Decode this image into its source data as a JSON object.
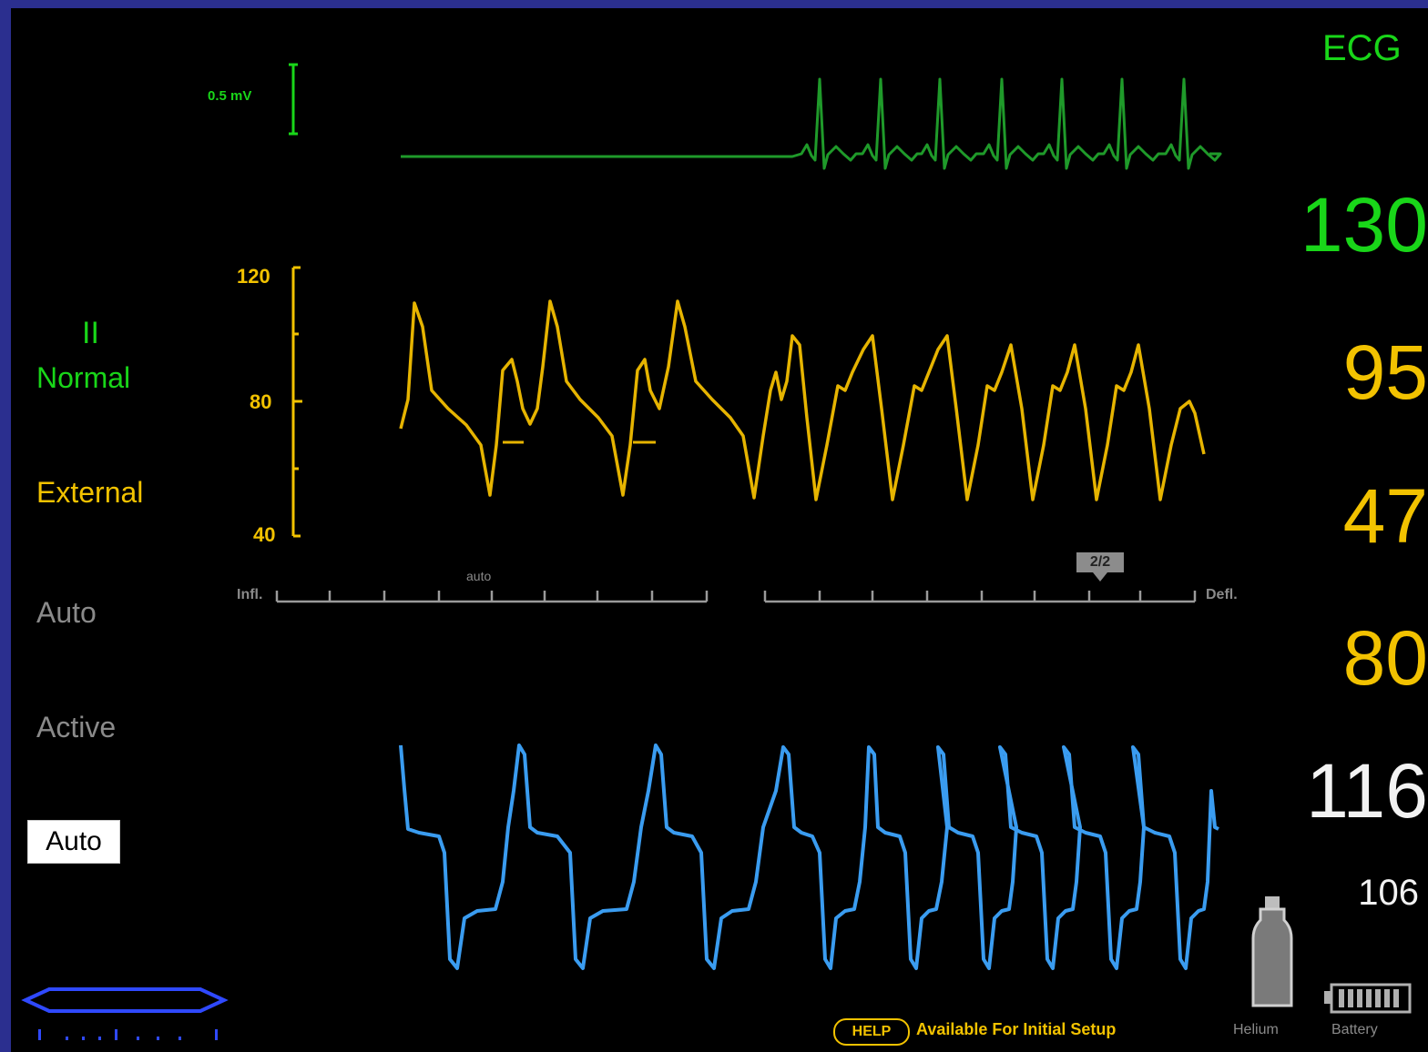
{
  "ecg": {
    "label": "ECG",
    "scale_label": "0.5 mV",
    "heart_rate": "130",
    "lead": "II",
    "mode": "Normal",
    "color": "#19d619"
  },
  "arterial": {
    "source": "External",
    "scale_max": "120",
    "scale_mid": "80",
    "scale_min": "40",
    "systolic": "95",
    "diastolic": "47",
    "mean": "80",
    "color": "#f2c200"
  },
  "timing": {
    "left_label": "Infl.",
    "left_marker": "auto",
    "right_label": "Defl.",
    "right_marker": "2/2"
  },
  "pump": {
    "trigger_mode": "Auto",
    "status": "Active",
    "mode_button": "Auto",
    "rate_primary": "116",
    "rate_secondary": "106",
    "color": "#3a9cf0"
  },
  "footer": {
    "help_button": "HELP",
    "help_text": "Available For Initial Setup",
    "helium_label": "Helium",
    "battery_label": "Battery"
  }
}
